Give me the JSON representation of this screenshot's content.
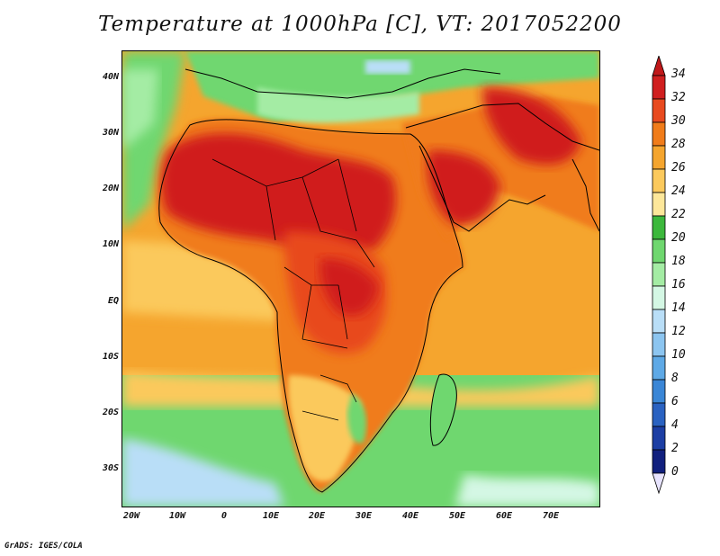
{
  "title": "Temperature at 1000hPa [C], VT: 2017052200",
  "credit": "GrADS: IGES/COLA",
  "map": {
    "lon_range": [
      -22,
      80
    ],
    "lat_range": [
      -37,
      45
    ],
    "lat_ticks": [
      "40N",
      "30N",
      "20N",
      "10N",
      "EQ",
      "10S",
      "20S",
      "30S"
    ],
    "lon_ticks": [
      "20W",
      "10W",
      "0",
      "10E",
      "20E",
      "30E",
      "40E",
      "50E",
      "60E",
      "70E"
    ]
  },
  "colorbar": {
    "levels": [
      "34",
      "32",
      "30",
      "28",
      "26",
      "24",
      "22",
      "20",
      "18",
      "16",
      "14",
      "12",
      "10",
      "8",
      "6",
      "4",
      "2",
      "0"
    ],
    "colors": [
      "#d01f1f",
      "#e84a1f",
      "#f07c1a",
      "#f5a52e",
      "#fbc95c",
      "#fde79a",
      "#3cb83c",
      "#6fd76f",
      "#a4eca4",
      "#d4f7e4",
      "#b9def7",
      "#8cc5f0",
      "#5ea9e6",
      "#3a86d6",
      "#2a62c1",
      "#1c3ea4",
      "#11207e",
      "#e8e4ff"
    ],
    "top_color": "#c0181a",
    "bottom_color": "#e8e4ff"
  }
}
